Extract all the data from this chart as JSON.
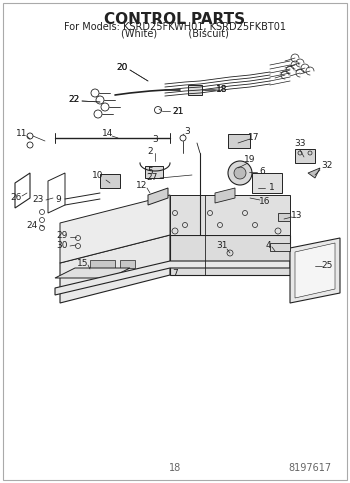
{
  "title": "CONTROL PARTS",
  "subtitle_line1": "For Models: KSRD25FKWH01, KSRD25FKBT01",
  "subtitle_line2": "(White)          (Biscuit)",
  "page_number": "18",
  "doc_number": "8197617",
  "bg_color": "#ffffff",
  "line_color": "#222222",
  "text_color": "#222222",
  "title_fontsize": 11,
  "subtitle_fontsize": 7,
  "label_fontsize": 6.5,
  "fig_width": 3.5,
  "fig_height": 4.83,
  "dpi": 100
}
